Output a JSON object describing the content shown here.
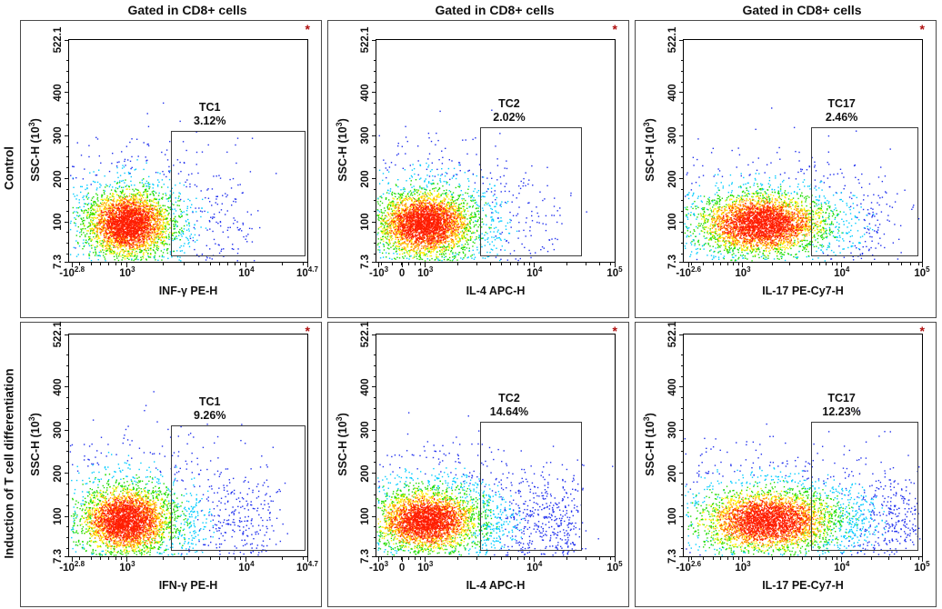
{
  "figure": {
    "headers": [
      "Gated in CD8+ cells",
      "Gated in CD8+ cells",
      "Gated in CD8+ cells"
    ],
    "row_labels": [
      "Control",
      "Induction of T cell differentiation"
    ],
    "marker": "*",
    "colors": {
      "marker": "#b01010",
      "panel_border": "#4a4a4a",
      "plot_border": "#000000",
      "gate_border": "#3b3b3b",
      "text": "#111111"
    },
    "density_palette": [
      "#2030ee",
      "#00ccff",
      "#1edc00",
      "#ffee00",
      "#ff8c00",
      "#ff1e00"
    ]
  },
  "chart_data": [
    {
      "type": "scatter",
      "panel": "top-left",
      "row": 0,
      "col": 0,
      "title": "Gated in CD8+ cells",
      "xlabel": "INF-γ PE-H",
      "ylabel": {
        "base": "SSC-H  (10",
        "sup": "3",
        "post": ")"
      },
      "x_ticks": [
        {
          "base": "-10",
          "sup": "2.8",
          "pos": 0.012
        },
        {
          "base": "10",
          "sup": "3",
          "pos": 0.244
        },
        {
          "base": "10",
          "sup": "4",
          "pos": 0.744
        },
        {
          "base": "10",
          "sup": "4.7",
          "pos": 1.0
        }
      ],
      "x_decade": [
        0.244,
        0.744
      ],
      "y_ticks": [
        {
          "label": "7.3",
          "pos": 0.0
        },
        {
          "label": "100",
          "pos": 0.18
        },
        {
          "label": "200",
          "pos": 0.374
        },
        {
          "label": "300",
          "pos": 0.569
        },
        {
          "label": "400",
          "pos": 0.763
        },
        {
          "label": "522.1",
          "pos": 1.0
        }
      ],
      "y_axis_range": [
        7.3,
        522.1
      ],
      "gate": {
        "label": "TC1",
        "percent": "3.12%",
        "x0": 0.427,
        "x1": 0.985,
        "y0": 0.032,
        "y1": 0.59
      },
      "cloud": {
        "seed": 11,
        "n": 4000,
        "cx": 0.25,
        "cy": 0.17,
        "sx": 0.085,
        "sy": 0.072,
        "wide": 2.4,
        "wide_frac": 0.22,
        "tail_frac": 0.045,
        "tail_len": 0.5
      }
    },
    {
      "type": "scatter",
      "panel": "top-middle",
      "row": 0,
      "col": 1,
      "title": "Gated in CD8+ cells",
      "xlabel": "IL-4 APC-H",
      "ylabel": {
        "base": "SSC-H  (10",
        "sup": "3",
        "post": ")"
      },
      "x_ticks": [
        {
          "base": "-10",
          "sup": "3",
          "pos": 0.01
        },
        {
          "base": "0",
          "pos": 0.107
        },
        {
          "base": "10",
          "sup": "3",
          "pos": 0.205
        },
        {
          "base": "10",
          "sup": "4",
          "pos": 0.663
        },
        {
          "base": "10",
          "sup": "5",
          "pos": 1.0
        }
      ],
      "x_decade": [
        0.205,
        0.663
      ],
      "y_ticks": [
        {
          "label": "7.3",
          "pos": 0.0
        },
        {
          "label": "100",
          "pos": 0.18
        },
        {
          "label": "200",
          "pos": 0.374
        },
        {
          "label": "300",
          "pos": 0.569
        },
        {
          "label": "400",
          "pos": 0.763
        },
        {
          "label": "522.1",
          "pos": 1.0
        }
      ],
      "y_axis_range": [
        7.3,
        522.1
      ],
      "gate": {
        "label": "TC2",
        "percent": "2.02%",
        "x0": 0.435,
        "x1": 0.855,
        "y0": 0.032,
        "y1": 0.608
      },
      "cloud": {
        "seed": 22,
        "n": 4200,
        "cx": 0.205,
        "cy": 0.17,
        "sx": 0.095,
        "sy": 0.07,
        "wide": 2.4,
        "wide_frac": 0.24,
        "tail_frac": 0.035,
        "tail_len": 0.55
      }
    },
    {
      "type": "scatter",
      "panel": "top-right",
      "row": 0,
      "col": 2,
      "title": "Gated in CD8+ cells",
      "xlabel": "IL-17 PE-Cy7-H",
      "ylabel": {
        "base": "SSC-H  (10",
        "sup": "3",
        "post": ")"
      },
      "x_ticks": [
        {
          "base": "-10",
          "sup": "2.6",
          "pos": 0.02
        },
        {
          "base": "10",
          "sup": "3",
          "pos": 0.248
        },
        {
          "base": "10",
          "sup": "4",
          "pos": 0.663
        },
        {
          "base": "10",
          "sup": "5",
          "pos": 1.0
        }
      ],
      "x_decade": [
        0.248,
        0.663
      ],
      "y_ticks": [
        {
          "label": "7.3",
          "pos": 0.0
        },
        {
          "label": "100",
          "pos": 0.18
        },
        {
          "label": "200",
          "pos": 0.374
        },
        {
          "label": "300",
          "pos": 0.569
        },
        {
          "label": "400",
          "pos": 0.763
        },
        {
          "label": "522.1",
          "pos": 1.0
        }
      ],
      "y_axis_range": [
        7.3,
        522.1
      ],
      "gate": {
        "label": "TC17",
        "percent": "2.46%",
        "x0": 0.533,
        "x1": 0.978,
        "y0": 0.032,
        "y1": 0.605
      },
      "cloud": {
        "seed": 33,
        "n": 4200,
        "cx": 0.33,
        "cy": 0.17,
        "sx": 0.125,
        "sy": 0.065,
        "wide": 2.2,
        "wide_frac": 0.26,
        "tail_frac": 0.04,
        "tail_len": 0.5
      }
    },
    {
      "type": "scatter",
      "panel": "bottom-left",
      "row": 1,
      "col": 0,
      "title": "Gated in CD8+ cells",
      "xlabel": "IFN-γ PE-H",
      "ylabel": {
        "base": "SSC-H  (10",
        "sup": "3",
        "post": ")"
      },
      "x_ticks": [
        {
          "base": "-10",
          "sup": "2.8",
          "pos": 0.012
        },
        {
          "base": "10",
          "sup": "3",
          "pos": 0.244
        },
        {
          "base": "10",
          "sup": "4",
          "pos": 0.744
        },
        {
          "base": "10",
          "sup": "4.7",
          "pos": 1.0
        }
      ],
      "x_decade": [
        0.244,
        0.744
      ],
      "y_ticks": [
        {
          "label": "7.3",
          "pos": 0.0
        },
        {
          "label": "100",
          "pos": 0.18
        },
        {
          "label": "200",
          "pos": 0.374
        },
        {
          "label": "300",
          "pos": 0.569
        },
        {
          "label": "400",
          "pos": 0.763
        },
        {
          "label": "522.1",
          "pos": 1.0
        }
      ],
      "y_axis_range": [
        7.3,
        522.1
      ],
      "gate": {
        "label": "TC1",
        "percent": "9.26%",
        "x0": 0.427,
        "x1": 0.985,
        "y0": 0.032,
        "y1": 0.59
      },
      "cloud": {
        "seed": 44,
        "n": 4200,
        "cx": 0.24,
        "cy": 0.16,
        "sx": 0.09,
        "sy": 0.072,
        "wide": 2.5,
        "wide_frac": 0.24,
        "tail_frac": 0.1,
        "tail_len": 0.6
      }
    },
    {
      "type": "scatter",
      "panel": "bottom-middle",
      "row": 1,
      "col": 1,
      "title": "Gated in CD8+ cells",
      "xlabel": "IL-4 APC-H",
      "ylabel": {
        "base": "SSC-H  (10",
        "sup": "3",
        "post": ")"
      },
      "x_ticks": [
        {
          "base": "-10",
          "sup": "3",
          "pos": 0.01
        },
        {
          "base": "0",
          "pos": 0.107
        },
        {
          "base": "10",
          "sup": "3",
          "pos": 0.205
        },
        {
          "base": "10",
          "sup": "4",
          "pos": 0.663
        },
        {
          "base": "10",
          "sup": "5",
          "pos": 1.0
        }
      ],
      "x_decade": [
        0.205,
        0.663
      ],
      "y_ticks": [
        {
          "label": "7.3",
          "pos": 0.0
        },
        {
          "label": "100",
          "pos": 0.18
        },
        {
          "label": "200",
          "pos": 0.374
        },
        {
          "label": "300",
          "pos": 0.569
        },
        {
          "label": "400",
          "pos": 0.763
        },
        {
          "label": "522.1",
          "pos": 1.0
        }
      ],
      "y_axis_range": [
        7.3,
        522.1
      ],
      "gate": {
        "label": "TC2",
        "percent": "14.64%",
        "x0": 0.435,
        "x1": 0.855,
        "y0": 0.032,
        "y1": 0.608
      },
      "cloud": {
        "seed": 55,
        "n": 4400,
        "cx": 0.21,
        "cy": 0.16,
        "sx": 0.1,
        "sy": 0.065,
        "wide": 2.4,
        "wide_frac": 0.25,
        "tail_frac": 0.16,
        "tail_len": 0.62
      }
    },
    {
      "type": "scatter",
      "panel": "bottom-right",
      "row": 1,
      "col": 2,
      "title": "Gated in CD8+ cells",
      "xlabel": "IL-17 PE-Cy7-H",
      "ylabel": {
        "base": "SSC-H  (10",
        "sup": "3",
        "post": ")"
      },
      "x_ticks": [
        {
          "base": "-10",
          "sup": "2.6",
          "pos": 0.02
        },
        {
          "base": "10",
          "sup": "3",
          "pos": 0.248
        },
        {
          "base": "10",
          "sup": "4",
          "pos": 0.663
        },
        {
          "base": "10",
          "sup": "5",
          "pos": 1.0
        }
      ],
      "x_decade": [
        0.248,
        0.663
      ],
      "y_ticks": [
        {
          "label": "7.3",
          "pos": 0.0
        },
        {
          "label": "100",
          "pos": 0.18
        },
        {
          "label": "200",
          "pos": 0.374
        },
        {
          "label": "300",
          "pos": 0.569
        },
        {
          "label": "400",
          "pos": 0.763
        },
        {
          "label": "522.1",
          "pos": 1.0
        }
      ],
      "y_axis_range": [
        7.3,
        522.1
      ],
      "gate": {
        "label": "TC17",
        "percent": "12.23%",
        "x0": 0.533,
        "x1": 0.978,
        "y0": 0.032,
        "y1": 0.605
      },
      "cloud": {
        "seed": 66,
        "n": 4400,
        "cx": 0.35,
        "cy": 0.16,
        "sx": 0.13,
        "sy": 0.065,
        "wide": 2.3,
        "wide_frac": 0.26,
        "tail_frac": 0.13,
        "tail_len": 0.6
      }
    }
  ]
}
